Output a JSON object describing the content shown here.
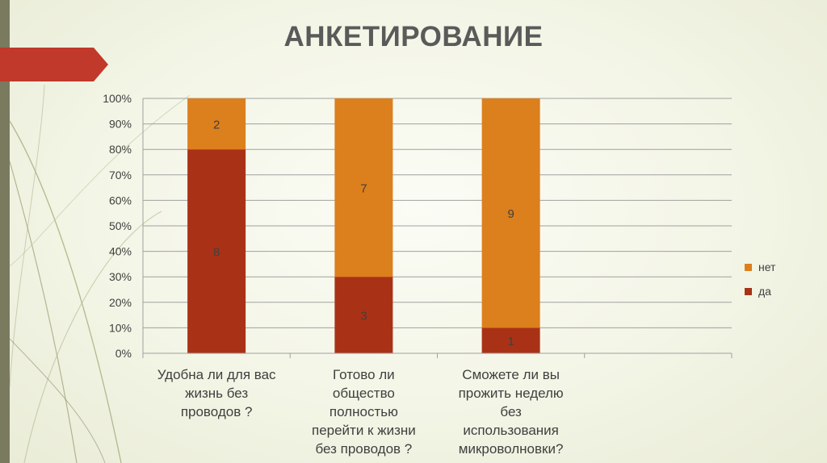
{
  "slide": {
    "title": "АНКЕТИРОВАНИЕ"
  },
  "colors": {
    "strip": "#7a7a5f",
    "banner": "#c0392b",
    "da": "#a93216",
    "net": "#dc7f1d"
  },
  "chart_data": {
    "type": "bar",
    "stacked": true,
    "percent_stacked": true,
    "categories": [
      "Удобна ли для вас жизнь без проводов ?",
      "Готово ли общество полностью перейти к жизни без проводов ?",
      "Сможете ли вы прожить неделю без использования микроволновки?",
      ""
    ],
    "category_lines": [
      [
        "Удобна ли для вас",
        "жизнь без",
        "проводов ?"
      ],
      [
        "Готово ли",
        "общество",
        "полностью",
        "перейти к жизни",
        "без проводов ?"
      ],
      [
        "Сможете ли вы",
        "прожить неделю",
        "без",
        "использования",
        "микроволновки?"
      ],
      []
    ],
    "series": [
      {
        "name": "да",
        "values": [
          8,
          3,
          1,
          null
        ],
        "color": "#a93216"
      },
      {
        "name": "нет",
        "values": [
          2,
          7,
          9,
          null
        ],
        "color": "#dc7f1d"
      }
    ],
    "y_ticks": [
      "0%",
      "10%",
      "20%",
      "30%",
      "40%",
      "50%",
      "60%",
      "70%",
      "80%",
      "90%",
      "100%"
    ],
    "ylim": [
      0,
      100
    ],
    "grid": true,
    "legend_position": "right",
    "legend_order": [
      "нет",
      "да"
    ]
  }
}
